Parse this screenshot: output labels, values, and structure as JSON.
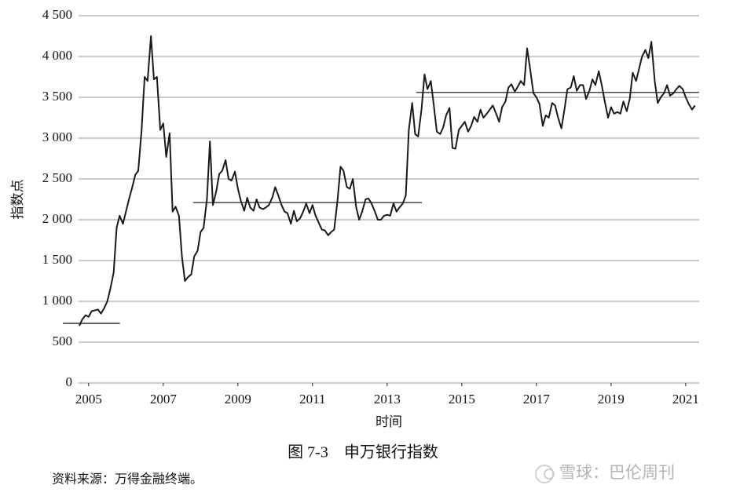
{
  "chart_data": {
    "type": "line",
    "caption": "图 7-3　申万银行指数",
    "source": "资料来源：万得金融终端。",
    "watermark": "雪球：巴伦周刊",
    "xlabel": "时间",
    "ylabel": "指数点",
    "color": "#1a1a1a",
    "grid": true,
    "xlim": [
      2004.73,
      2021.36
    ],
    "xticks": [
      2005,
      2007,
      2009,
      2011,
      2013,
      2015,
      2017,
      2019,
      2021
    ],
    "ylim": [
      0,
      4500
    ],
    "yticks": [
      0,
      500,
      {
        "value": 1000,
        "label": "1 000"
      },
      {
        "value": 1500,
        "label": "1 500"
      },
      {
        "value": 2000,
        "label": "2 000"
      },
      {
        "value": 2500,
        "label": "2 500"
      },
      {
        "value": 3000,
        "label": "3 000"
      },
      {
        "value": 3500,
        "label": "3 500"
      },
      {
        "value": 4000,
        "label": "4 000"
      },
      {
        "value": 4500,
        "label": "4 500"
      }
    ],
    "x": [
      2004.75,
      2004.83,
      2004.92,
      2005.0,
      2005.08,
      2005.17,
      2005.25,
      2005.33,
      2005.42,
      2005.5,
      2005.58,
      2005.67,
      2005.75,
      2005.83,
      2005.92,
      2006.0,
      2006.08,
      2006.17,
      2006.25,
      2006.33,
      2006.42,
      2006.5,
      2006.58,
      2006.67,
      2006.75,
      2006.83,
      2006.92,
      2007.0,
      2007.08,
      2007.17,
      2007.25,
      2007.33,
      2007.42,
      2007.5,
      2007.58,
      2007.67,
      2007.75,
      2007.83,
      2007.92,
      2008.0,
      2008.08,
      2008.17,
      2008.25,
      2008.33,
      2008.42,
      2008.5,
      2008.58,
      2008.67,
      2008.75,
      2008.83,
      2008.92,
      2009.0,
      2009.08,
      2009.17,
      2009.25,
      2009.33,
      2009.42,
      2009.5,
      2009.58,
      2009.67,
      2009.75,
      2009.83,
      2009.92,
      2010.0,
      2010.08,
      2010.17,
      2010.25,
      2010.33,
      2010.42,
      2010.5,
      2010.58,
      2010.67,
      2010.75,
      2010.83,
      2010.92,
      2011.0,
      2011.08,
      2011.17,
      2011.25,
      2011.33,
      2011.42,
      2011.5,
      2011.58,
      2011.67,
      2011.75,
      2011.83,
      2011.92,
      2012.0,
      2012.08,
      2012.17,
      2012.25,
      2012.33,
      2012.42,
      2012.5,
      2012.58,
      2012.67,
      2012.75,
      2012.83,
      2012.92,
      2013.0,
      2013.08,
      2013.17,
      2013.25,
      2013.33,
      2013.42,
      2013.5,
      2013.58,
      2013.67,
      2013.75,
      2013.83,
      2013.92,
      2014.0,
      2014.08,
      2014.17,
      2014.25,
      2014.33,
      2014.42,
      2014.5,
      2014.58,
      2014.67,
      2014.75,
      2014.83,
      2014.92,
      2015.0,
      2015.08,
      2015.17,
      2015.25,
      2015.33,
      2015.42,
      2015.5,
      2015.58,
      2015.67,
      2015.75,
      2015.83,
      2015.92,
      2016.0,
      2016.08,
      2016.17,
      2016.25,
      2016.33,
      2016.42,
      2016.5,
      2016.58,
      2016.67,
      2016.75,
      2016.83,
      2016.92,
      2017.0,
      2017.08,
      2017.17,
      2017.25,
      2017.33,
      2017.42,
      2017.5,
      2017.58,
      2017.67,
      2017.75,
      2017.83,
      2017.92,
      2018.0,
      2018.08,
      2018.17,
      2018.25,
      2018.33,
      2018.42,
      2018.5,
      2018.58,
      2018.67,
      2018.75,
      2018.83,
      2018.92,
      2019.0,
      2019.08,
      2019.17,
      2019.25,
      2019.33,
      2019.42,
      2019.5,
      2019.58,
      2019.67,
      2019.75,
      2019.83,
      2019.92,
      2020.0,
      2020.08,
      2020.17,
      2020.25,
      2020.33,
      2020.42,
      2020.5,
      2020.58,
      2020.67,
      2020.75,
      2020.83,
      2020.92,
      2021.0,
      2021.08,
      2021.17,
      2021.25
    ],
    "values": [
      700,
      780,
      830,
      810,
      880,
      890,
      900,
      850,
      920,
      1000,
      1150,
      1350,
      1900,
      2050,
      1950,
      2100,
      2250,
      2400,
      2550,
      2600,
      3100,
      3750,
      3700,
      4250,
      3720,
      3750,
      3100,
      3180,
      2770,
      3060,
      2100,
      2160,
      2050,
      1550,
      1250,
      1300,
      1330,
      1550,
      1620,
      1850,
      1900,
      2250,
      2960,
      2180,
      2350,
      2560,
      2600,
      2730,
      2500,
      2480,
      2590,
      2380,
      2230,
      2110,
      2270,
      2150,
      2110,
      2250,
      2150,
      2130,
      2150,
      2180,
      2270,
      2400,
      2300,
      2180,
      2100,
      2080,
      1950,
      2110,
      1980,
      2020,
      2100,
      2200,
      2080,
      2180,
      2050,
      1960,
      1880,
      1870,
      1810,
      1850,
      1880,
      2240,
      2650,
      2600,
      2400,
      2380,
      2500,
      2150,
      2000,
      2100,
      2250,
      2260,
      2200,
      2100,
      2000,
      2000,
      2050,
      2060,
      2050,
      2200,
      2100,
      2150,
      2200,
      2300,
      3100,
      3430,
      3050,
      3020,
      3350,
      3780,
      3600,
      3700,
      3400,
      3080,
      3050,
      3130,
      3280,
      3370,
      2880,
      2870,
      3100,
      3150,
      3200,
      3080,
      3150,
      3260,
      3200,
      3350,
      3250,
      3300,
      3350,
      3400,
      3300,
      3200,
      3380,
      3450,
      3620,
      3660,
      3570,
      3630,
      3700,
      3650,
      4100,
      3850,
      3550,
      3500,
      3420,
      3150,
      3280,
      3250,
      3430,
      3400,
      3250,
      3120,
      3350,
      3600,
      3620,
      3760,
      3580,
      3650,
      3650,
      3480,
      3580,
      3720,
      3650,
      3820,
      3650,
      3450,
      3250,
      3380,
      3300,
      3320,
      3300,
      3450,
      3330,
      3480,
      3800,
      3700,
      3850,
      4000,
      4080,
      3980,
      4180,
      3700,
      3430,
      3500,
      3550,
      3650,
      3520,
      3550,
      3600,
      3640,
      3600,
      3500,
      3420,
      3350,
      3400
    ],
    "reference_lines": [
      {
        "x": [
          2004.31,
          2005.84
        ],
        "y": 730
      },
      {
        "x": [
          2007.8,
          2013.93
        ],
        "y": 2210
      },
      {
        "x": [
          2013.78,
          2021.36
        ],
        "y": 3560
      }
    ]
  }
}
